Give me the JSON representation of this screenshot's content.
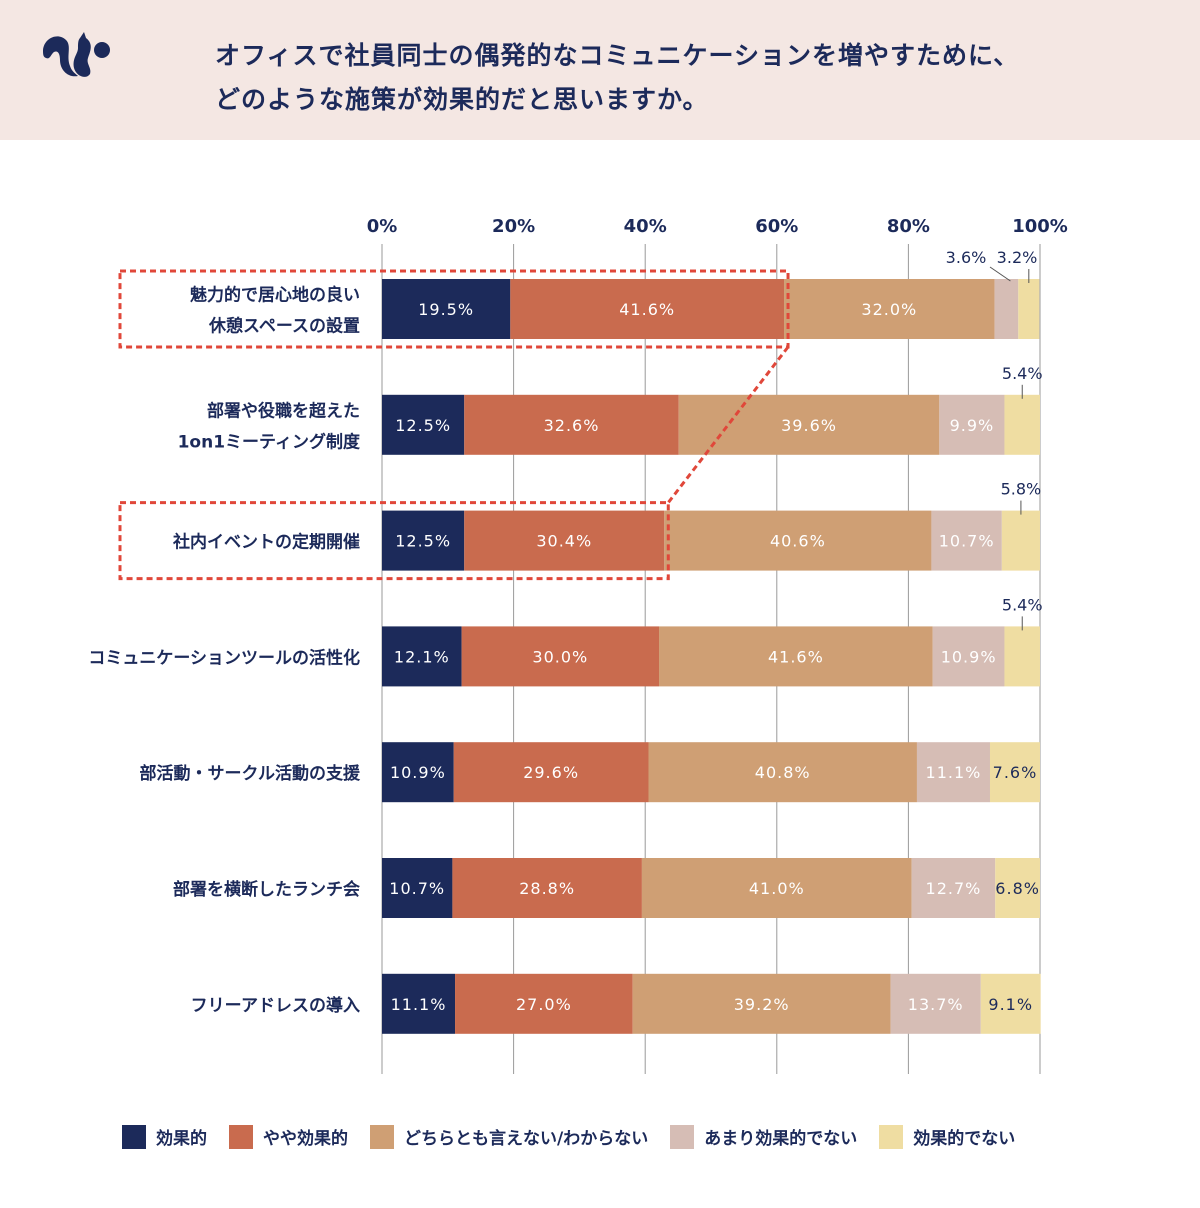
{
  "header": {
    "title_line1": "オフィスで社員同士の偶発的なコミュニケーションを増やすために、",
    "title_line2": "どのような施策が効果的だと思いますか。",
    "logo_icon": "squirrel-logo"
  },
  "chart_data": {
    "type": "bar",
    "orientation": "horizontal-stacked-100",
    "title": "オフィスで社員同士の偶発的なコミュニケーションを増やすために、どのような施策が効果的だと思いますか。",
    "xlim": [
      0,
      100
    ],
    "x_ticks": [
      "0%",
      "20%",
      "40%",
      "60%",
      "80%",
      "100%"
    ],
    "grid": true,
    "legend_position": "bottom",
    "categories": [
      [
        "魅力的で居心地の良い",
        "休憩スペースの設置"
      ],
      [
        "部署や役職を超えた",
        "1on1ミーティング制度"
      ],
      [
        "社内イベントの定期開催"
      ],
      [
        "コミュニケーションツールの活性化"
      ],
      [
        "部活動・サークル活動の支援"
      ],
      [
        "部署を横断したランチ会"
      ],
      [
        "フリーアドレスの導入"
      ]
    ],
    "series": [
      {
        "name": "効果的",
        "color": "#1c2a5a",
        "values": [
          19.5,
          12.5,
          12.5,
          12.1,
          10.9,
          10.7,
          11.1
        ],
        "labels": [
          "19.5%",
          "12.5%",
          "12.5%",
          "12.1%",
          "10.9%",
          "10.7%",
          "11.1%"
        ]
      },
      {
        "name": "やや効果的",
        "color": "#c96b4e",
        "values": [
          41.6,
          32.6,
          30.4,
          30.0,
          29.6,
          28.8,
          27.0
        ],
        "labels": [
          "41.6%",
          "32.6%",
          "30.4%",
          "30.0%",
          "29.6%",
          "28.8%",
          "27.0%"
        ]
      },
      {
        "name": "どちらとも言えない/わからない",
        "color": "#cf9f74",
        "values": [
          32.0,
          39.6,
          40.6,
          41.6,
          40.8,
          41.0,
          39.2
        ],
        "labels": [
          "32.0%",
          "39.6%",
          "40.6%",
          "41.6%",
          "40.8%",
          "41.0%",
          "39.2%"
        ]
      },
      {
        "name": "あまり効果的でない",
        "color": "#d6bdb5",
        "values": [
          3.6,
          9.9,
          10.7,
          10.9,
          11.1,
          12.7,
          13.7
        ],
        "labels": [
          "3.6%",
          "9.9%",
          "10.7%",
          "10.9%",
          "11.1%",
          "12.7%",
          "13.7%"
        ]
      },
      {
        "name": "効果的でない",
        "color": "#efdda2",
        "values": [
          3.2,
          5.4,
          5.8,
          5.4,
          7.6,
          6.8,
          9.1
        ],
        "labels": [
          "3.2%",
          "5.4%",
          "5.8%",
          "5.4%",
          "7.6%",
          "6.8%",
          "9.1%"
        ]
      }
    ],
    "highlighted_categories": [
      0,
      2
    ],
    "highlight_color": "#e0473a"
  }
}
